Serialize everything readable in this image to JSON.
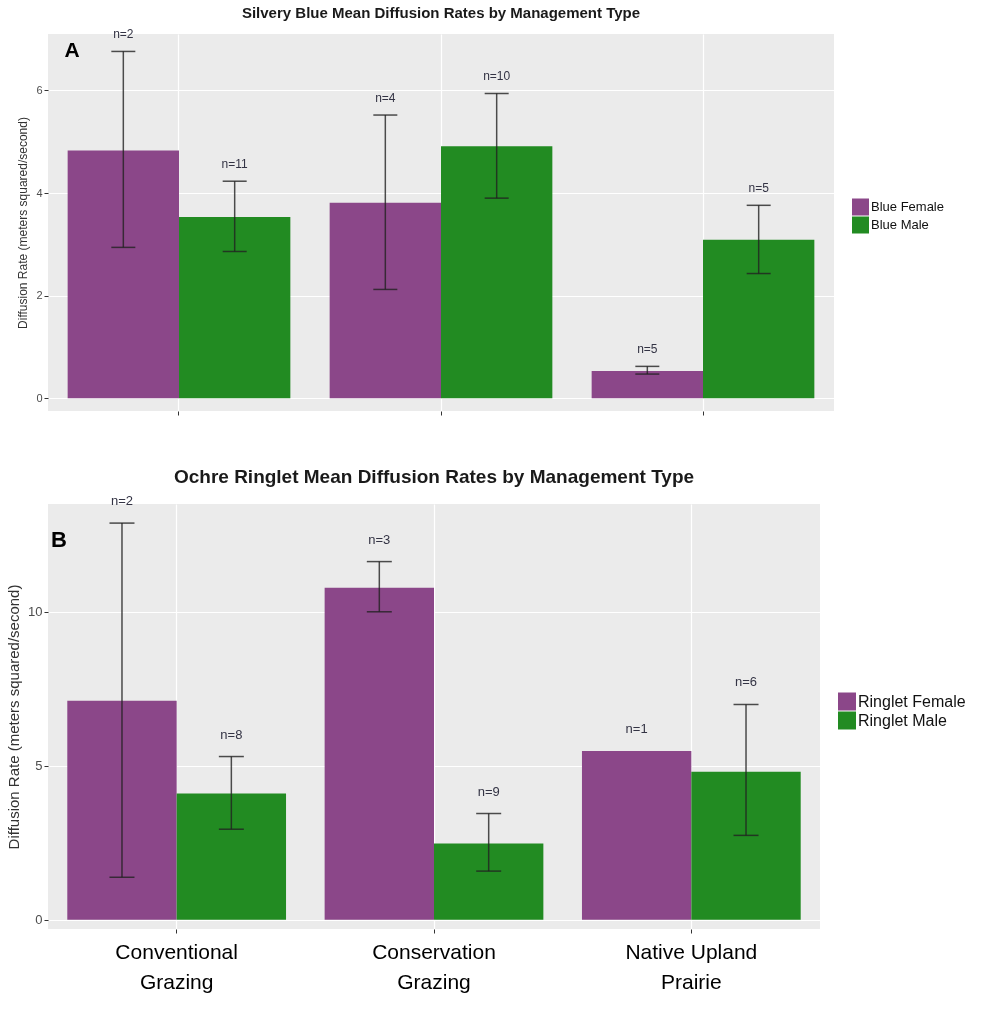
{
  "chart_data": [
    {
      "type": "bar",
      "title": "Silvery Blue Mean Diffusion Rates by Management Type",
      "ylabel": "Diffusion Rate (meters squared/second)",
      "categories": [
        null,
        null,
        null
      ],
      "ylim": [
        -0.25,
        7.1
      ],
      "yticks": [
        0,
        2,
        4,
        6
      ],
      "grid": true,
      "legend": "right",
      "annotations": [
        "A",
        "n=2",
        "n=11",
        "n=4",
        "n=10",
        "n=5",
        "n=5"
      ],
      "series": [
        {
          "name": "Blue Female",
          "color": "#8b4789",
          "values": [
            4.83,
            3.81,
            0.53
          ],
          "errors": [
            [
              2.94,
              6.76
            ],
            [
              2.12,
              5.52
            ],
            [
              0.47,
              0.62
            ]
          ]
        },
        {
          "name": "Blue Male",
          "color": "#228b22",
          "values": [
            3.53,
            4.91,
            3.09
          ],
          "errors": [
            [
              2.86,
              4.23
            ],
            [
              3.9,
              5.94
            ],
            [
              2.43,
              3.76
            ]
          ]
        }
      ]
    },
    {
      "type": "bar",
      "title": "Ochre Ringlet Mean Diffusion Rates by Management Type",
      "ylabel": "Diffusion Rate (meters squared/second)",
      "categories": [
        "Conventional Grazing",
        "Conservation Grazing",
        "Native Upland Prairie"
      ],
      "ylim": [
        -0.3,
        13.5
      ],
      "yticks": [
        0,
        5,
        10
      ],
      "grid": true,
      "legend": "right",
      "annotations": [
        "B",
        "n=2",
        "n=8",
        "n=3",
        "n=9",
        "n=1",
        "n=6"
      ],
      "series": [
        {
          "name": "Ringlet Female",
          "color": "#8b4789",
          "values": [
            7.11,
            10.78,
            5.48
          ],
          "errors": [
            [
              1.38,
              12.88
            ],
            [
              10.0,
              11.63
            ],
            null
          ]
        },
        {
          "name": "Ringlet Male",
          "color": "#228b22",
          "values": [
            4.1,
            2.48,
            4.81
          ],
          "errors": [
            [
              2.94,
              5.3
            ],
            [
              1.58,
              3.45
            ],
            [
              2.74,
              6.99
            ]
          ]
        }
      ]
    }
  ]
}
